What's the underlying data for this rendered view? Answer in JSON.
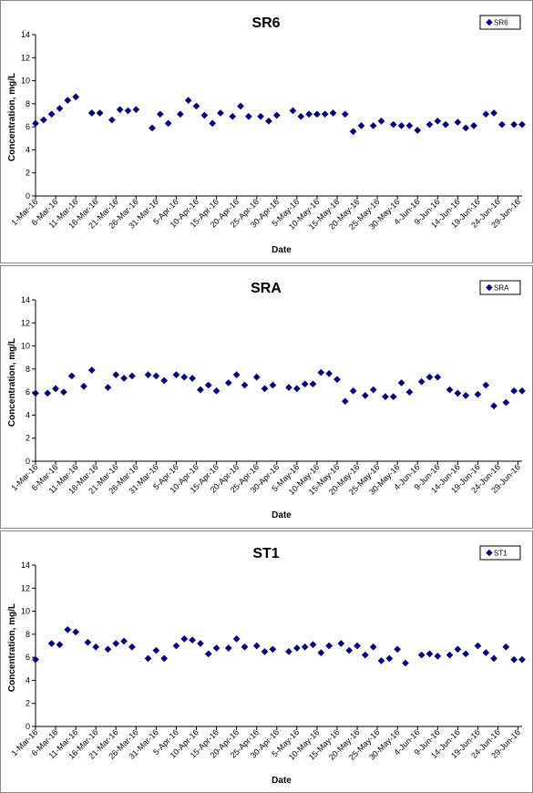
{
  "chart_data": [
    {
      "type": "scatter",
      "title": "SR6",
      "xlabel": "Date",
      "ylabel": "Concentration, mg/L",
      "ylim": [
        0,
        14
      ],
      "yticks": [
        0,
        2,
        4,
        6,
        8,
        10,
        12,
        14
      ],
      "xlim": [
        "1-Mar-16",
        "30-Jun-16"
      ],
      "xticks": [
        "1-Mar-16",
        "6-Mar-16",
        "11-Mar-16",
        "16-Mar-16",
        "21-Mar-16",
        "26-Mar-16",
        "31-Mar-16",
        "5-Apr-16",
        "10-Apr-16",
        "15-Apr-16",
        "20-Apr-16",
        "25-Apr-16",
        "30-Apr-16",
        "5-May-16",
        "10-May-16",
        "15-May-16",
        "20-May-16",
        "25-May-16",
        "30-May-16",
        "4-Jun-16",
        "9-Jun-16",
        "14-Jun-16",
        "19-Jun-16",
        "24-Jun-16",
        "29-Jun-16"
      ],
      "grid": false,
      "legend": "top-right",
      "marker_color": "#00007f",
      "series": [
        {
          "name": "SR6",
          "x": [
            "1-Mar-16",
            "3-Mar-16",
            "5-Mar-16",
            "7-Mar-16",
            "9-Mar-16",
            "11-Mar-16",
            "15-Mar-16",
            "17-Mar-16",
            "20-Mar-16",
            "22-Mar-16",
            "24-Mar-16",
            "26-Mar-16",
            "30-Mar-16",
            "1-Apr-16",
            "3-Apr-16",
            "6-Apr-16",
            "8-Apr-16",
            "10-Apr-16",
            "12-Apr-16",
            "14-Apr-16",
            "16-Apr-16",
            "19-Apr-16",
            "21-Apr-16",
            "23-Apr-16",
            "26-Apr-16",
            "28-Apr-16",
            "30-Apr-16",
            "4-May-16",
            "6-May-16",
            "8-May-16",
            "10-May-16",
            "12-May-16",
            "14-May-16",
            "17-May-16",
            "19-May-16",
            "21-May-16",
            "24-May-16",
            "26-May-16",
            "29-May-16",
            "31-May-16",
            "2-Jun-16",
            "4-Jun-16",
            "7-Jun-16",
            "9-Jun-16",
            "11-Jun-16",
            "14-Jun-16",
            "16-Jun-16",
            "18-Jun-16",
            "21-Jun-16",
            "23-Jun-16",
            "25-Jun-16",
            "28-Jun-16",
            "30-Jun-16"
          ],
          "y": [
            6.3,
            6.6,
            7.1,
            7.6,
            8.3,
            8.6,
            7.2,
            7.2,
            6.6,
            7.5,
            7.4,
            7.5,
            5.9,
            7.1,
            6.3,
            7.1,
            8.3,
            7.8,
            7.0,
            6.3,
            7.2,
            6.9,
            7.8,
            6.9,
            6.9,
            6.5,
            7.0,
            7.4,
            6.9,
            7.1,
            7.1,
            7.1,
            7.2,
            7.1,
            5.6,
            6.1,
            6.1,
            6.5,
            6.2,
            6.1,
            6.1,
            5.7,
            6.2,
            6.5,
            6.2,
            6.4,
            5.9,
            6.1,
            7.1,
            7.2,
            6.2,
            6.2,
            6.2
          ]
        }
      ]
    },
    {
      "type": "scatter",
      "title": "SRA",
      "xlabel": "Date",
      "ylabel": "Concentration, mg/L",
      "ylim": [
        0,
        14
      ],
      "yticks": [
        0,
        2,
        4,
        6,
        8,
        10,
        12,
        14
      ],
      "xlim": [
        "1-Mar-16",
        "30-Jun-16"
      ],
      "xticks": [
        "1-Mar-16",
        "6-Mar-16",
        "11-Mar-16",
        "16-Mar-16",
        "21-Mar-16",
        "26-Mar-16",
        "31-Mar-16",
        "5-Apr-16",
        "10-Apr-16",
        "15-Apr-16",
        "20-Apr-16",
        "25-Apr-16",
        "30-Apr-16",
        "5-May-16",
        "10-May-16",
        "15-May-16",
        "20-May-16",
        "25-May-16",
        "30-May-16",
        "4-Jun-16",
        "9-Jun-16",
        "14-Jun-16",
        "19-Jun-16",
        "24-Jun-16",
        "29-Jun-16"
      ],
      "grid": false,
      "legend": "top-right",
      "marker_color": "#00007f",
      "series": [
        {
          "name": "SRA",
          "x": [
            "1-Mar-16",
            "4-Mar-16",
            "6-Mar-16",
            "8-Mar-16",
            "10-Mar-16",
            "13-Mar-16",
            "15-Mar-16",
            "19-Mar-16",
            "21-Mar-16",
            "23-Mar-16",
            "25-Mar-16",
            "29-Mar-16",
            "31-Mar-16",
            "2-Apr-16",
            "5-Apr-16",
            "7-Apr-16",
            "9-Apr-16",
            "11-Apr-16",
            "13-Apr-16",
            "15-Apr-16",
            "18-Apr-16",
            "20-Apr-16",
            "22-Apr-16",
            "25-Apr-16",
            "27-Apr-16",
            "29-Apr-16",
            "3-May-16",
            "5-May-16",
            "7-May-16",
            "9-May-16",
            "11-May-16",
            "13-May-16",
            "15-May-16",
            "17-May-16",
            "19-May-16",
            "22-May-16",
            "24-May-16",
            "27-May-16",
            "29-May-16",
            "31-May-16",
            "2-Jun-16",
            "5-Jun-16",
            "7-Jun-16",
            "9-Jun-16",
            "12-Jun-16",
            "14-Jun-16",
            "16-Jun-16",
            "19-Jun-16",
            "21-Jun-16",
            "23-Jun-16",
            "26-Jun-16",
            "28-Jun-16",
            "30-Jun-16"
          ],
          "y": [
            5.9,
            5.9,
            6.3,
            6.0,
            7.4,
            6.5,
            7.9,
            6.4,
            7.5,
            7.2,
            7.4,
            7.5,
            7.4,
            7.0,
            7.5,
            7.3,
            7.2,
            6.2,
            6.6,
            6.1,
            6.8,
            7.5,
            6.6,
            7.3,
            6.3,
            6.6,
            6.4,
            6.3,
            6.7,
            6.7,
            7.7,
            7.6,
            7.1,
            5.2,
            6.1,
            5.7,
            6.2,
            5.6,
            5.6,
            6.8,
            6.0,
            6.9,
            7.3,
            7.3,
            6.2,
            5.9,
            5.7,
            5.8,
            6.6,
            4.8,
            5.1,
            6.1,
            6.1
          ]
        }
      ]
    },
    {
      "type": "scatter",
      "title": "ST1",
      "xlabel": "Date",
      "ylabel": "Concentration, mg/L",
      "ylim": [
        0,
        14
      ],
      "yticks": [
        0,
        2,
        4,
        6,
        8,
        10,
        12,
        14
      ],
      "xlim": [
        "1-Mar-16",
        "30-Jun-16"
      ],
      "xticks": [
        "1-Mar-16",
        "6-Mar-16",
        "11-Mar-16",
        "16-Mar-16",
        "21-Mar-16",
        "26-Mar-16",
        "31-Mar-16",
        "5-Apr-16",
        "10-Apr-16",
        "15-Apr-16",
        "20-Apr-16",
        "25-Apr-16",
        "30-Apr-16",
        "5-May-16",
        "10-May-16",
        "15-May-16",
        "20-May-16",
        "25-May-16",
        "30-May-16",
        "4-Jun-16",
        "9-Jun-16",
        "14-Jun-16",
        "19-Jun-16",
        "24-Jun-16",
        "29-Jun-16"
      ],
      "grid": false,
      "legend": "top-right",
      "marker_color": "#00007f",
      "series": [
        {
          "name": "ST1",
          "x": [
            "1-Mar-16",
            "5-Mar-16",
            "7-Mar-16",
            "9-Mar-16",
            "11-Mar-16",
            "14-Mar-16",
            "16-Mar-16",
            "19-Mar-16",
            "21-Mar-16",
            "23-Mar-16",
            "25-Mar-16",
            "29-Mar-16",
            "31-Mar-16",
            "2-Apr-16",
            "5-Apr-16",
            "7-Apr-16",
            "9-Apr-16",
            "11-Apr-16",
            "13-Apr-16",
            "15-Apr-16",
            "18-Apr-16",
            "20-Apr-16",
            "22-Apr-16",
            "25-Apr-16",
            "27-Apr-16",
            "29-Apr-16",
            "3-May-16",
            "5-May-16",
            "7-May-16",
            "9-May-16",
            "11-May-16",
            "13-May-16",
            "16-May-16",
            "18-May-16",
            "20-May-16",
            "22-May-16",
            "24-May-16",
            "26-May-16",
            "28-May-16",
            "30-May-16",
            "1-Jun-16",
            "5-Jun-16",
            "7-Jun-16",
            "9-Jun-16",
            "12-Jun-16",
            "14-Jun-16",
            "16-Jun-16",
            "19-Jun-16",
            "21-Jun-16",
            "23-Jun-16",
            "26-Jun-16",
            "28-Jun-16",
            "30-Jun-16"
          ],
          "y": [
            5.8,
            7.2,
            7.1,
            8.4,
            8.2,
            7.3,
            6.9,
            6.7,
            7.2,
            7.4,
            6.9,
            5.9,
            6.6,
            5.9,
            7.0,
            7.6,
            7.5,
            7.2,
            6.3,
            6.8,
            6.8,
            7.6,
            6.9,
            7.0,
            6.5,
            6.7,
            6.5,
            6.8,
            6.9,
            7.1,
            6.4,
            7.0,
            7.2,
            6.6,
            7.0,
            6.2,
            6.9,
            5.7,
            5.9,
            6.7,
            5.5,
            6.2,
            6.3,
            6.1,
            6.2,
            6.7,
            6.3,
            7.0,
            6.4,
            5.9,
            6.9,
            5.8,
            5.8
          ]
        }
      ]
    }
  ]
}
